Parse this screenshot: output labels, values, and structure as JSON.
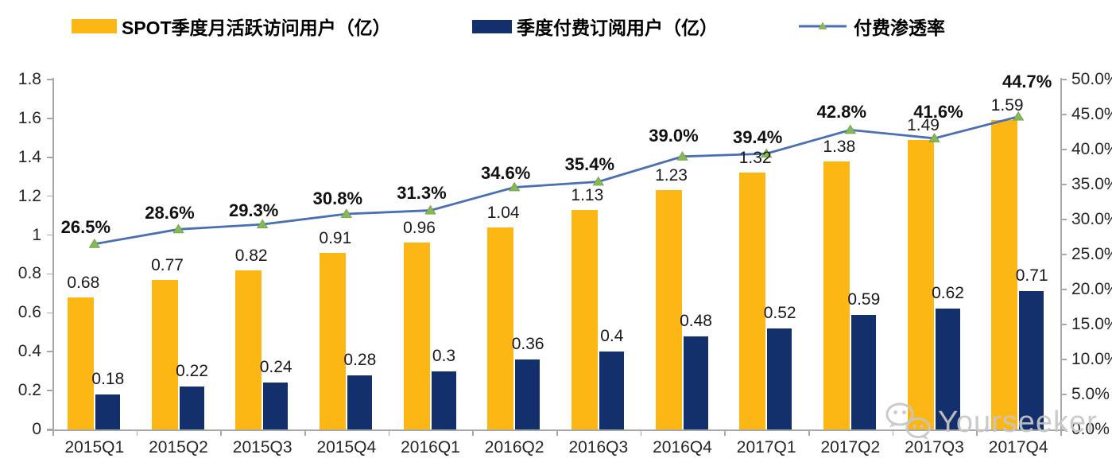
{
  "legend": {
    "items": [
      {
        "label": "SPOT季度月活跃访问用户（亿）",
        "swatch": "bar",
        "color": "#FCB714"
      },
      {
        "label": "季度付费订阅用户（亿）",
        "swatch": "bar",
        "color": "#14306C"
      },
      {
        "label": "付费渗透率",
        "swatch": "line",
        "color": "#4A6FB5",
        "marker_color": "#86B85A"
      }
    ]
  },
  "chart_data": {
    "type": "combo-bar-line",
    "title": "",
    "categories": [
      "2015Q1",
      "2015Q2",
      "2015Q3",
      "2015Q4",
      "2016Q1",
      "2016Q2",
      "2016Q3",
      "2016Q4",
      "2017Q1",
      "2017Q2",
      "2017Q3",
      "2017Q4"
    ],
    "series": [
      {
        "name": "SPOT季度月活跃访问用户（亿）",
        "type": "bar",
        "axis": "left",
        "color": "#FCB714",
        "values": [
          0.68,
          0.77,
          0.82,
          0.91,
          0.96,
          1.04,
          1.13,
          1.23,
          1.32,
          1.38,
          1.49,
          1.59
        ],
        "labels": [
          "0.68",
          "0.77",
          "0.82",
          "0.91",
          "0.96",
          "1.04",
          "1.13",
          "1.23",
          "1.32",
          "1.38",
          "1.49",
          "1.59"
        ]
      },
      {
        "name": "季度付费订阅用户（亿）",
        "type": "bar",
        "axis": "left",
        "color": "#14306C",
        "values": [
          0.18,
          0.22,
          0.24,
          0.28,
          0.3,
          0.36,
          0.4,
          0.48,
          0.52,
          0.59,
          0.62,
          0.71
        ],
        "labels": [
          "0.18",
          "0.22",
          "0.24",
          "0.28",
          "0.3",
          "0.36",
          "0.4",
          "0.48",
          "0.52",
          "0.59",
          "0.62",
          "0.71"
        ]
      },
      {
        "name": "付费渗透率",
        "type": "line",
        "axis": "right",
        "color": "#4A6FB5",
        "marker": "triangle",
        "marker_color": "#86B85A",
        "values": [
          26.5,
          28.6,
          29.3,
          30.8,
          31.3,
          34.6,
          35.4,
          39.0,
          39.4,
          42.8,
          41.6,
          44.7
        ],
        "labels": [
          "26.5%",
          "28.6%",
          "29.3%",
          "30.8%",
          "31.3%",
          "34.6%",
          "35.4%",
          "39.0%",
          "39.4%",
          "42.8%",
          "41.6%",
          "44.7%"
        ]
      }
    ],
    "left_axis": {
      "min": 0,
      "max": 1.8,
      "step": 0.2,
      "ticks": [
        "0",
        "0.2",
        "0.4",
        "0.6",
        "0.8",
        "1",
        "1.2",
        "1.4",
        "1.6",
        "1.8"
      ]
    },
    "right_axis": {
      "min": 0,
      "max": 50,
      "step": 5,
      "ticks": [
        "0.0%",
        "5.0%",
        "10.0%",
        "15.0%",
        "20.0%",
        "25.0%",
        "30.0%",
        "35.0%",
        "40.0%",
        "45.0%",
        "50.0%"
      ]
    },
    "grid": false,
    "legend_position": "top"
  },
  "watermark": {
    "text": "Yourseeker",
    "icon": "wechat-icon",
    "color": "#c7c7c7"
  }
}
